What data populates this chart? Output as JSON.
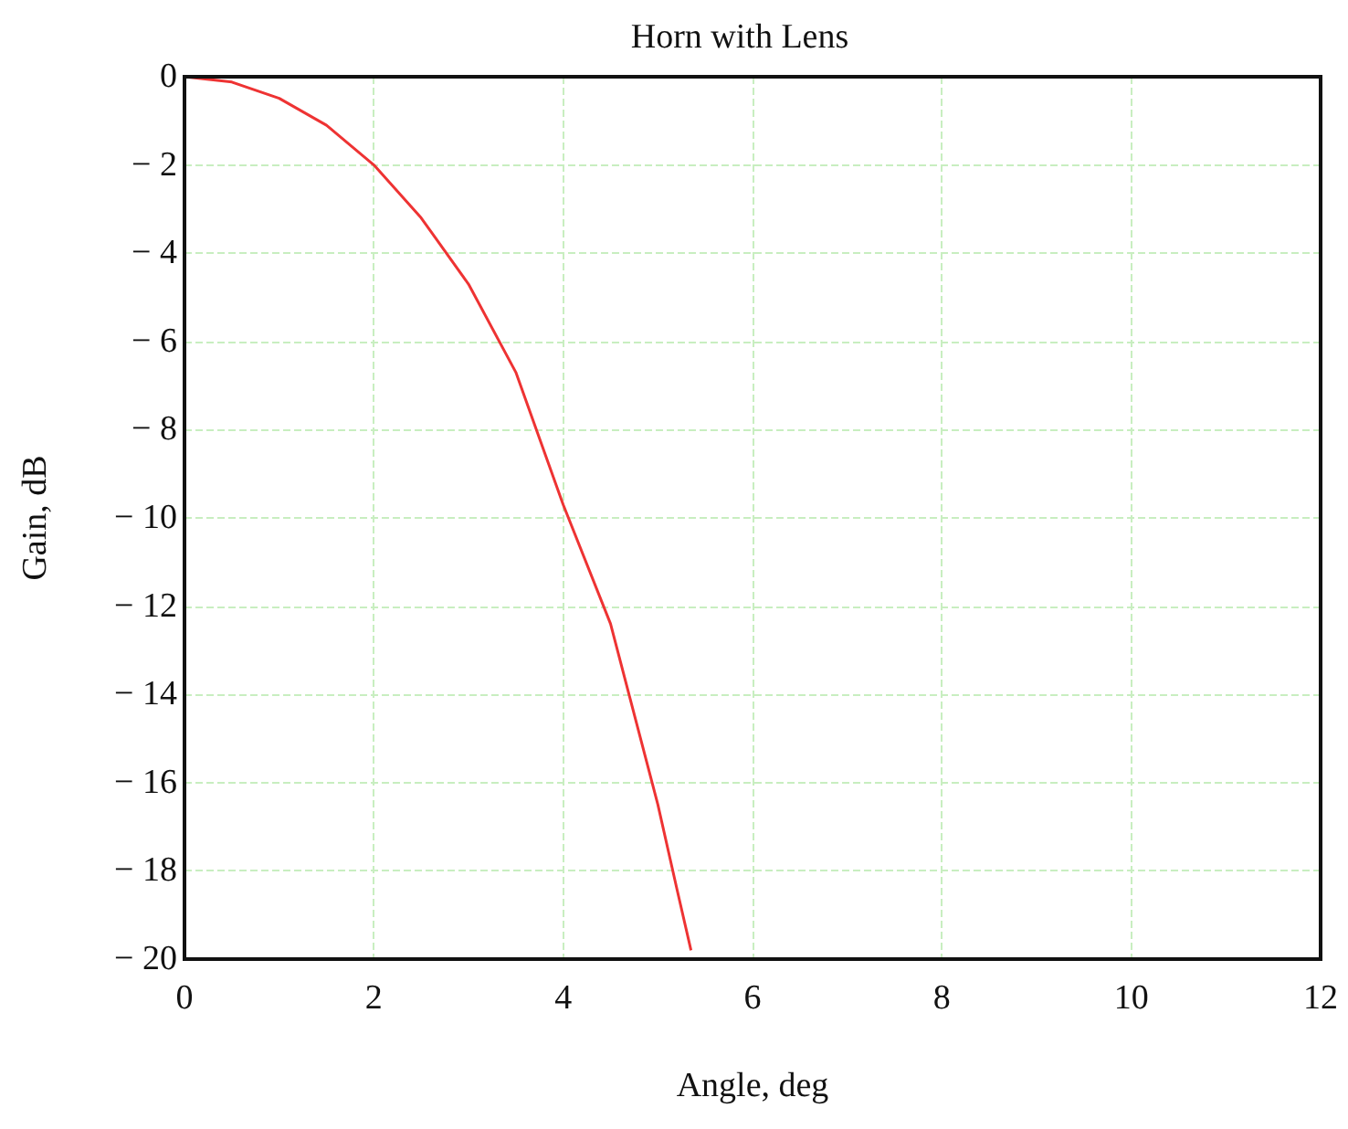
{
  "chart_data": {
    "type": "line",
    "title": "Horn with Lens",
    "xlabel": "Angle, deg",
    "ylabel": "Gain, dB",
    "x": [
      0,
      0.5,
      1,
      1.5,
      2,
      2.5,
      3,
      3.5,
      4,
      4.5,
      5,
      5.2,
      5.35
    ],
    "series": [
      {
        "color": "#ee3333",
        "values": [
          0,
          -0.12,
          -0.49,
          -1.1,
          -2,
          -3.2,
          -4.7,
          -6.7,
          -9.7,
          -12.4,
          -16.5,
          -18.4,
          -19.8
        ]
      }
    ],
    "xlim": [
      0,
      12
    ],
    "xticks": [
      0,
      2,
      4,
      6,
      8,
      10,
      12
    ],
    "ylim": [
      -20,
      0
    ],
    "yticks": [
      0,
      -2,
      -4,
      -6,
      -8,
      -10,
      -12,
      -14,
      -16,
      -18,
      -20
    ],
    "grid": true,
    "marker": "none",
    "line_style": "solid"
  }
}
